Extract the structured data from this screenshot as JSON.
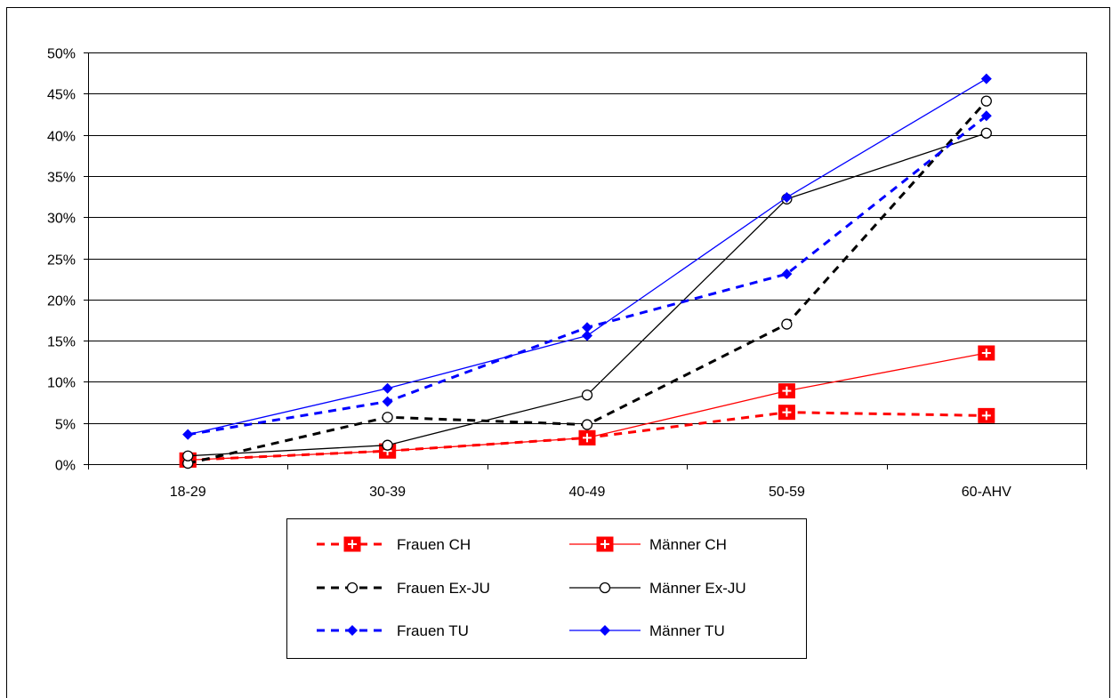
{
  "chart_data": {
    "type": "line",
    "title": "",
    "xlabel": "",
    "ylabel": "",
    "categories": [
      "18-29",
      "30-39",
      "40-49",
      "50-59",
      "60-AHV"
    ],
    "y_tick_labels": [
      "0%",
      "5%",
      "10%",
      "15%",
      "20%",
      "25%",
      "30%",
      "35%",
      "40%",
      "45%",
      "50%"
    ],
    "ylim": [
      0,
      50
    ],
    "y_unit": "%",
    "grid": "horizontal",
    "legend_position": "bottom",
    "series": [
      {
        "name": "Frauen CH",
        "values": [
          0.5,
          1.6,
          3.2,
          6.3,
          5.9
        ],
        "color": "#ff0000",
        "dash": "dashed",
        "marker": "square-plus"
      },
      {
        "name": "Männer CH",
        "values": [
          0.5,
          1.6,
          3.2,
          8.9,
          13.5
        ],
        "color": "#ff0000",
        "dash": "solid",
        "marker": "square-plus"
      },
      {
        "name": "Frauen Ex-JU",
        "values": [
          0.1,
          5.7,
          4.8,
          17.0,
          44.1
        ],
        "color": "#000000",
        "dash": "dashed",
        "marker": "circle"
      },
      {
        "name": "Männer Ex-JU",
        "values": [
          1.0,
          2.3,
          8.4,
          32.2,
          40.2
        ],
        "color": "#000000",
        "dash": "solid",
        "marker": "circle"
      },
      {
        "name": "Frauen TU",
        "values": [
          3.6,
          7.6,
          16.6,
          23.1,
          42.3
        ],
        "color": "#0000ff",
        "dash": "dashed",
        "marker": "diamond"
      },
      {
        "name": "Männer TU",
        "values": [
          3.6,
          9.2,
          15.6,
          32.4,
          46.8
        ],
        "color": "#0000ff",
        "dash": "solid",
        "marker": "diamond"
      }
    ]
  }
}
